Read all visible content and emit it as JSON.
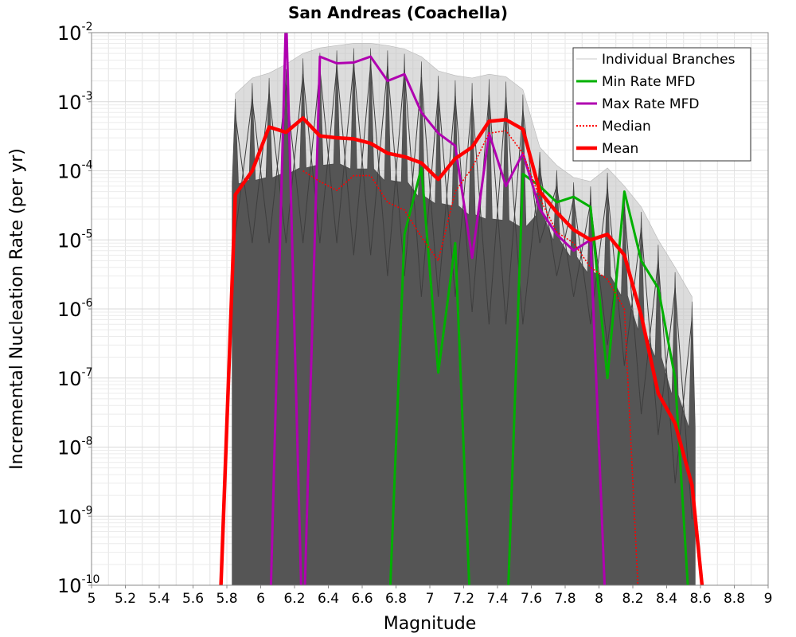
{
  "chart_data": {
    "type": "line",
    "title": "San Andreas (Coachella)",
    "xlabel": "Magnitude",
    "ylabel": "Incremental Nucleation Rate (per yr)",
    "xlim": [
      5,
      9
    ],
    "ylim": [
      1e-10,
      0.01
    ],
    "yscale": "log",
    "grid": true,
    "legend_position": "top-right",
    "x_ticks": [
      5,
      5.2,
      5.4,
      5.6,
      5.8,
      6,
      6.2,
      6.4,
      6.6,
      6.8,
      7,
      7.2,
      7.4,
      7.6,
      7.8,
      8,
      8.2,
      8.4,
      8.6,
      8.8,
      9
    ],
    "x_tick_labels": [
      "5",
      "5.2",
      "5.4",
      "5.6",
      "5.8",
      "6",
      "6.2",
      "6.4",
      "6.6",
      "6.8",
      "7",
      "7.2",
      "7.4",
      "7.6",
      "7.8",
      "8",
      "8.2",
      "8.4",
      "8.6",
      "8.8",
      "9"
    ],
    "y_tick_exponents": [
      -10,
      -9,
      -8,
      -7,
      -6,
      -5,
      -4,
      -3,
      -2
    ],
    "y_tick_base": "10",
    "y_tick_exponent_labels": [
      "-10",
      "-9",
      "-8",
      "-7",
      "-6",
      "-5",
      "-4",
      "-3",
      "-2"
    ],
    "legend": [
      {
        "label": "Individual Branches",
        "color": "#c8c8c8",
        "style": "solid-thin"
      },
      {
        "label": "Min Rate MFD",
        "color": "#00b000",
        "style": "solid"
      },
      {
        "label": "Max Rate MFD",
        "color": "#b000b0",
        "style": "solid"
      },
      {
        "label": "Median",
        "color": "#ff0000",
        "style": "dotted"
      },
      {
        "label": "Mean",
        "color": "#ff0000",
        "style": "solid-thick"
      }
    ],
    "colors": {
      "branches_fill": "#555555",
      "branches_envelope": "#c0c0c0",
      "min": "#00b000",
      "max": "#b000b0",
      "median": "#ff0000",
      "mean": "#ff0000"
    },
    "x": [
      5.75,
      5.85,
      5.95,
      6.05,
      6.15,
      6.25,
      6.35,
      6.45,
      6.55,
      6.65,
      6.75,
      6.85,
      6.95,
      7.05,
      7.15,
      7.25,
      7.35,
      7.45,
      7.55,
      7.65,
      7.75,
      7.85,
      7.95,
      8.05,
      8.15,
      8.25,
      8.35,
      8.45,
      8.55,
      8.65
    ],
    "series": [
      {
        "name": "Mean",
        "values": [
          1e-11,
          4.5e-05,
          0.0001,
          0.00043,
          0.00036,
          0.00058,
          0.00032,
          0.0003,
          0.00029,
          0.00025,
          0.00018,
          0.00016,
          0.00013,
          7.5e-05,
          0.00015,
          0.00022,
          0.00052,
          0.00055,
          0.0004,
          5e-05,
          2.5e-05,
          1.4e-05,
          1e-05,
          1.2e-05,
          6e-06,
          8e-07,
          6e-08,
          2.2e-08,
          2.8e-09,
          1e-11
        ]
      },
      {
        "name": "Median",
        "values": [
          null,
          null,
          null,
          null,
          null,
          0.0001,
          7e-05,
          5.2e-05,
          8.5e-05,
          8.5e-05,
          3.5e-05,
          2.7e-05,
          1.1e-05,
          5e-06,
          5e-05,
          0.00011,
          0.00035,
          0.00038,
          0.00018,
          4e-05,
          1.3e-05,
          9e-06,
          4e-06,
          2.7e-06,
          1e-06,
          1e-11,
          null,
          null,
          null,
          null
        ]
      },
      {
        "name": "Min Rate MFD",
        "values": [
          null,
          null,
          null,
          null,
          null,
          null,
          null,
          null,
          null,
          null,
          1e-11,
          1.2e-05,
          0.00011,
          1.2e-07,
          9e-06,
          1e-11,
          null,
          1e-11,
          9e-05,
          6e-05,
          3.5e-05,
          4.2e-05,
          3e-05,
          1e-07,
          5e-05,
          5e-06,
          2e-06,
          1e-07,
          1e-11,
          null
        ]
      },
      {
        "name": "Max Rate MFD",
        "values": [
          null,
          null,
          null,
          1e-11,
          0.02,
          1e-11,
          0.0045,
          0.0036,
          0.0037,
          0.0045,
          0.002,
          0.0025,
          0.0007,
          0.00035,
          0.00023,
          5.5e-06,
          0.00035,
          6e-05,
          0.00018,
          2.8e-05,
          1.2e-05,
          7e-06,
          1e-05,
          1e-11,
          null,
          null,
          null,
          null,
          null,
          null
        ]
      }
    ],
    "branch_envelope": {
      "upper": [
        null,
        0.0013,
        0.0022,
        0.0026,
        0.0035,
        0.005,
        0.006,
        0.0065,
        0.007,
        0.007,
        0.0065,
        0.0058,
        0.0045,
        0.0028,
        0.0024,
        0.0022,
        0.0025,
        0.0023,
        0.0015,
        0.00022,
        0.00012,
        8e-05,
        7e-05,
        0.00011,
        6e-05,
        3e-05,
        1e-05,
        4e-06,
        1.5e-06,
        null
      ],
      "lower": [
        null,
        4e-06,
        3e-06,
        3e-06,
        3e-06,
        3e-06,
        3e-06,
        3e-06,
        2e-06,
        2e-06,
        1e-06,
        1e-06,
        5e-07,
        5e-07,
        5e-07,
        3e-07,
        2e-07,
        2e-07,
        2e-07,
        3e-06,
        1e-06,
        5e-07,
        2e-07,
        1e-07,
        5e-08,
        1e-08,
        5e-09,
        1e-09,
        3e-10,
        null
      ]
    }
  }
}
